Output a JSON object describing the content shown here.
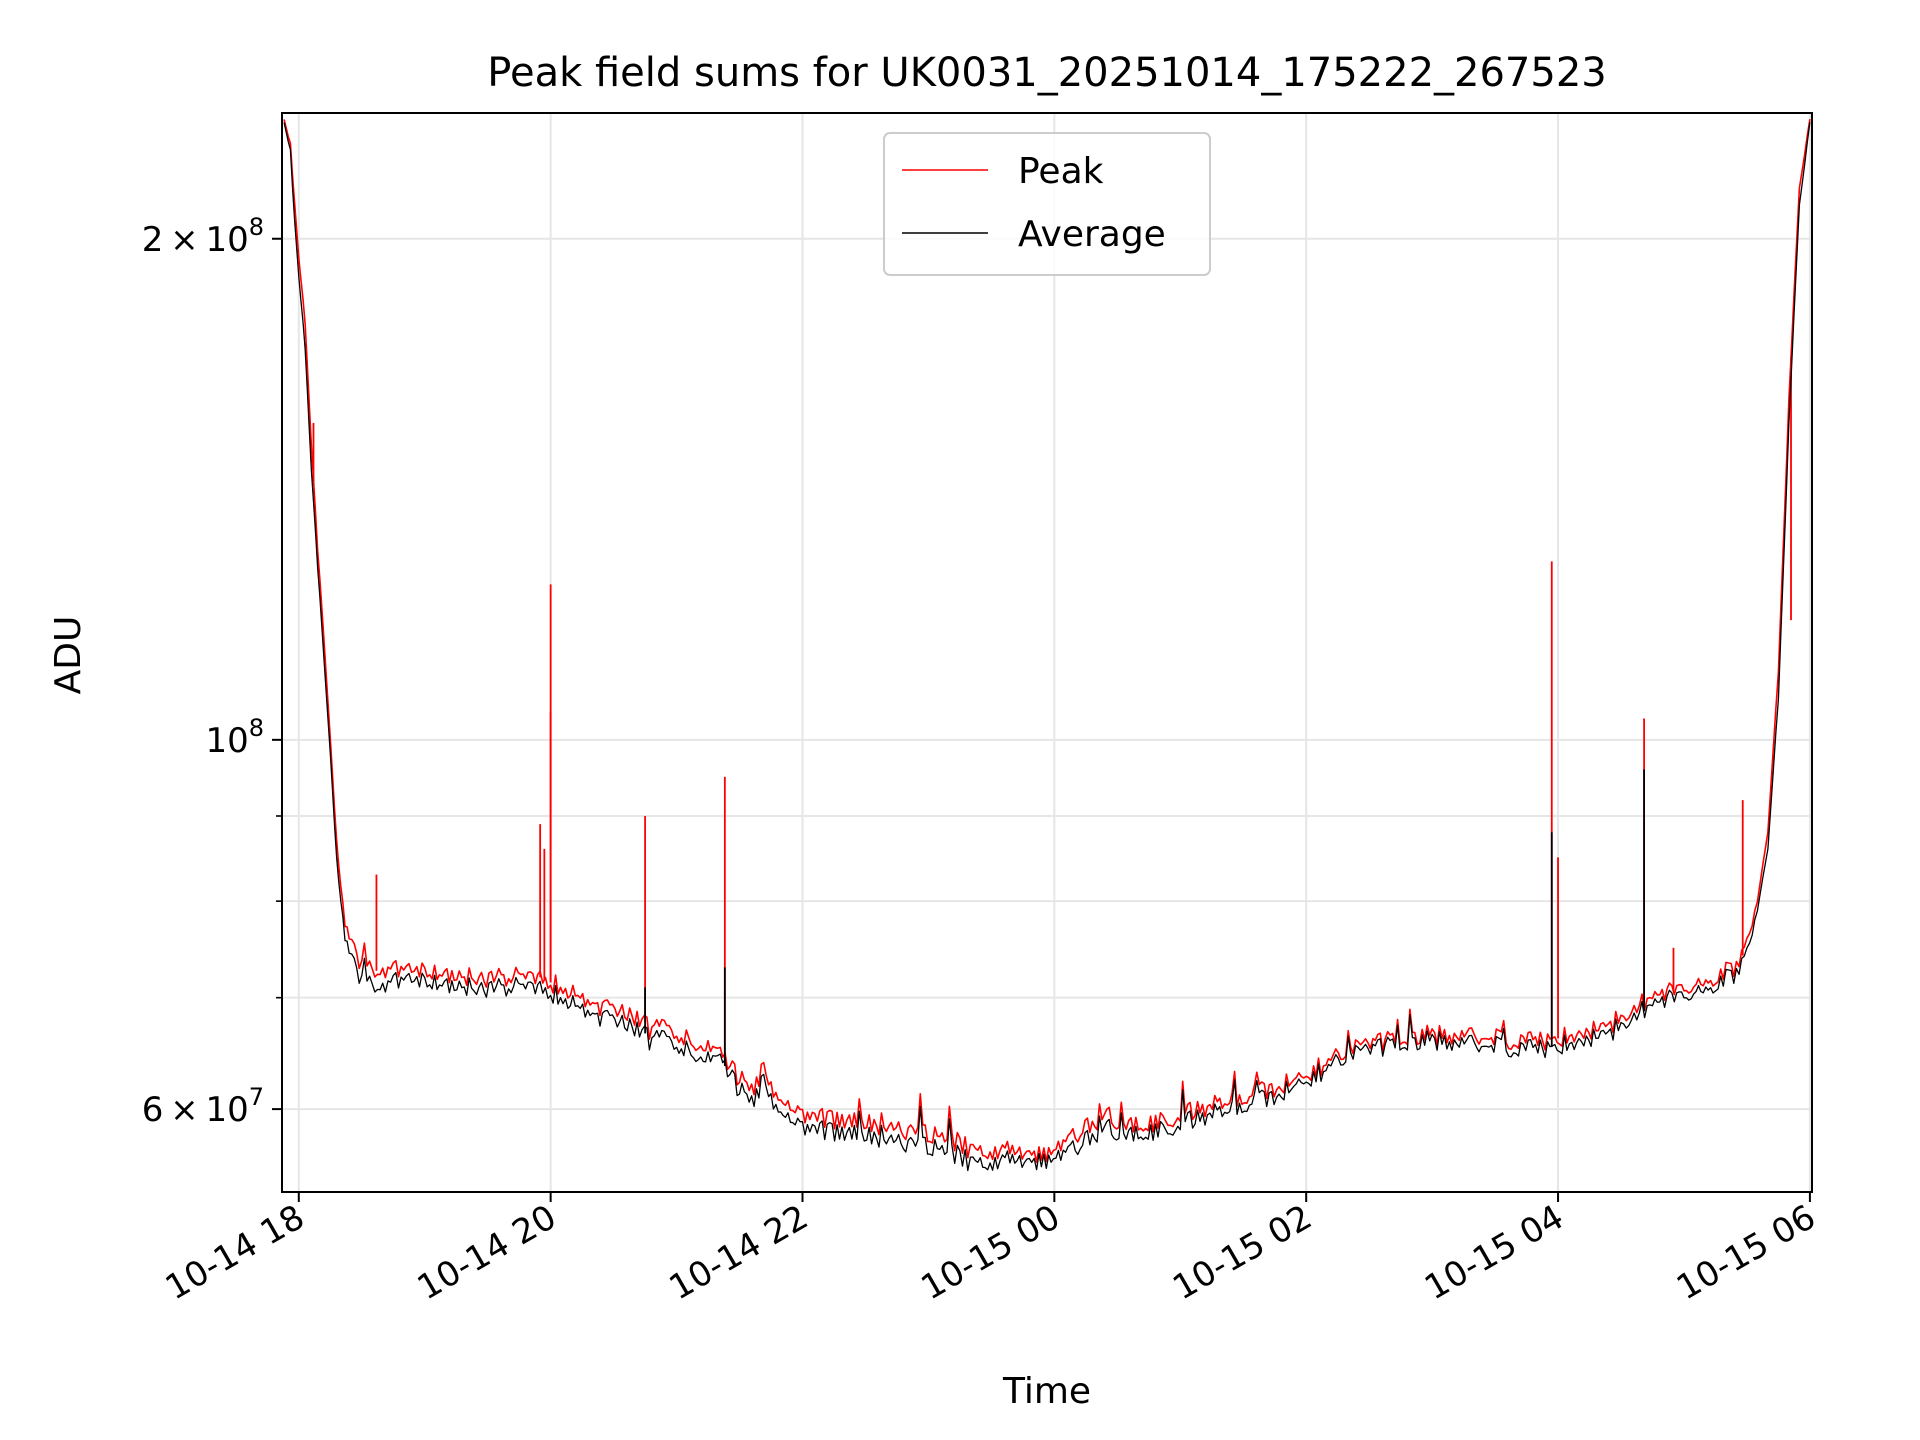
{
  "chart_data": {
    "type": "line",
    "title": "Peak field sums for UK0031_20251014_175222_267523",
    "xlabel": "Time",
    "ylabel": "ADU",
    "y_scale": "log",
    "ylim": [
      53500000,
      238000000
    ],
    "xlim": [
      "2025-10-14 17:52",
      "2025-10-15 06:01"
    ],
    "grid": true,
    "legend_position": "top-center",
    "x_ticks": [
      {
        "t": "2025-10-14 18:00",
        "label": "10-14 18"
      },
      {
        "t": "2025-10-14 20:00",
        "label": "10-14 20"
      },
      {
        "t": "2025-10-14 22:00",
        "label": "10-14 22"
      },
      {
        "t": "2025-10-15 00:00",
        "label": "10-15 00"
      },
      {
        "t": "2025-10-15 02:00",
        "label": "10-15 02"
      },
      {
        "t": "2025-10-15 04:00",
        "label": "10-15 04"
      },
      {
        "t": "2025-10-15 06:00",
        "label": "10-15 06"
      }
    ],
    "y_major_ticks": [
      {
        "v": 60000000,
        "mantissa": "6",
        "exponent": "7"
      },
      {
        "v": 100000000,
        "mantissa": "",
        "exponent": "8"
      },
      {
        "v": 200000000,
        "mantissa": "2",
        "exponent": "8"
      }
    ],
    "y_minor_ticks": [
      70000000,
      80000000,
      90000000
    ],
    "series": [
      {
        "name": "Peak",
        "color": "#ff0000",
        "x": [
          "2025-10-14 17:53",
          "2025-10-14 17:56",
          "2025-10-14 17:58",
          "2025-10-14 18:00",
          "2025-10-14 18:03",
          "2025-10-14 18:06",
          "2025-10-14 18:09",
          "2025-10-14 18:12",
          "2025-10-14 18:15",
          "2025-10-14 18:18",
          "2025-10-14 18:21",
          "2025-10-14 18:24",
          "2025-10-14 18:30",
          "2025-10-14 18:40",
          "2025-10-14 18:50",
          "2025-10-14 19:00",
          "2025-10-14 19:20",
          "2025-10-14 19:40",
          "2025-10-14 19:55",
          "2025-10-14 20:00",
          "2025-10-14 20:20",
          "2025-10-14 20:40",
          "2025-10-14 21:00",
          "2025-10-14 21:15",
          "2025-10-14 21:22",
          "2025-10-14 21:30",
          "2025-10-14 21:45",
          "2025-10-14 22:00",
          "2025-10-14 22:20",
          "2025-10-14 22:40",
          "2025-10-14 22:55",
          "2025-10-14 23:10",
          "2025-10-14 23:20",
          "2025-10-14 23:40",
          "2025-10-14 23:55",
          "2025-10-15 00:10",
          "2025-10-15 00:25",
          "2025-10-15 00:40",
          "2025-10-15 01:00",
          "2025-10-15 01:20",
          "2025-10-15 01:40",
          "2025-10-15 02:00",
          "2025-10-15 02:20",
          "2025-10-15 02:40",
          "2025-10-15 03:00",
          "2025-10-15 03:20",
          "2025-10-15 03:40",
          "2025-10-15 03:55",
          "2025-10-15 04:10",
          "2025-10-15 04:25",
          "2025-10-15 04:35",
          "2025-10-15 04:45",
          "2025-10-15 05:00",
          "2025-10-15 05:15",
          "2025-10-15 05:25",
          "2025-10-15 05:30",
          "2025-10-15 05:35",
          "2025-10-15 05:40",
          "2025-10-15 05:45",
          "2025-10-15 05:50",
          "2025-10-15 05:55",
          "2025-10-15 06:00"
        ],
        "y": [
          236000000,
          228000000,
          210000000,
          195000000,
          178000000,
          150000000,
          130000000,
          115000000,
          100000000,
          87000000,
          79000000,
          76000000,
          73000000,
          72500000,
          73000000,
          72500000,
          72000000,
          72000000,
          72000000,
          71500000,
          69500000,
          68000000,
          66500000,
          65500000,
          64500000,
          62500000,
          61500000,
          59500000,
          59000000,
          58500000,
          58200000,
          57500000,
          57000000,
          56500000,
          56300000,
          58000000,
          59500000,
          58500000,
          59500000,
          60500000,
          61500000,
          63000000,
          65000000,
          66000000,
          66500000,
          66500000,
          66000000,
          66000000,
          66500000,
          67500000,
          68500000,
          70000000,
          71000000,
          72000000,
          73000000,
          75000000,
          80000000,
          88000000,
          110000000,
          160000000,
          215000000,
          236000000
        ],
        "spikes": [
          {
            "t": "2025-10-14 18:07",
            "v": 155000000
          },
          {
            "t": "2025-10-14 18:37",
            "v": 83000000
          },
          {
            "t": "2025-10-14 19:55",
            "v": 89000000
          },
          {
            "t": "2025-10-14 19:57",
            "v": 86000000
          },
          {
            "t": "2025-10-14 20:00",
            "v": 124000000
          },
          {
            "t": "2025-10-14 20:00",
            "v": 104000000
          },
          {
            "t": "2025-10-14 20:45",
            "v": 90000000
          },
          {
            "t": "2025-10-14 21:23",
            "v": 95000000
          },
          {
            "t": "2025-10-15 03:57",
            "v": 128000000
          },
          {
            "t": "2025-10-15 04:00",
            "v": 85000000
          },
          {
            "t": "2025-10-15 04:41",
            "v": 103000000
          },
          {
            "t": "2025-10-15 04:55",
            "v": 75000000
          },
          {
            "t": "2025-10-15 05:28",
            "v": 92000000
          },
          {
            "t": "2025-10-15 05:51",
            "v": 118000000
          }
        ]
      },
      {
        "name": "Average",
        "color": "#000000",
        "x": [
          "2025-10-14 17:53",
          "2025-10-14 17:56",
          "2025-10-14 17:58",
          "2025-10-14 18:00",
          "2025-10-14 18:03",
          "2025-10-14 18:06",
          "2025-10-14 18:09",
          "2025-10-14 18:12",
          "2025-10-14 18:15",
          "2025-10-14 18:18",
          "2025-10-14 18:21",
          "2025-10-14 18:24",
          "2025-10-14 18:30",
          "2025-10-14 18:40",
          "2025-10-14 18:50",
          "2025-10-14 19:00",
          "2025-10-14 19:20",
          "2025-10-14 19:40",
          "2025-10-14 19:55",
          "2025-10-14 20:00",
          "2025-10-14 20:20",
          "2025-10-14 20:40",
          "2025-10-14 21:00",
          "2025-10-14 21:15",
          "2025-10-14 21:22",
          "2025-10-14 21:30",
          "2025-10-14 21:45",
          "2025-10-14 22:00",
          "2025-10-14 22:20",
          "2025-10-14 22:40",
          "2025-10-14 22:55",
          "2025-10-14 23:10",
          "2025-10-14 23:20",
          "2025-10-14 23:40",
          "2025-10-14 23:55",
          "2025-10-15 00:10",
          "2025-10-15 00:25",
          "2025-10-15 00:40",
          "2025-10-15 01:00",
          "2025-10-15 01:20",
          "2025-10-15 01:40",
          "2025-10-15 02:00",
          "2025-10-15 02:20",
          "2025-10-15 02:40",
          "2025-10-15 03:00",
          "2025-10-15 03:20",
          "2025-10-15 03:40",
          "2025-10-15 03:55",
          "2025-10-15 04:10",
          "2025-10-15 04:25",
          "2025-10-15 04:35",
          "2025-10-15 04:45",
          "2025-10-15 05:00",
          "2025-10-15 05:15",
          "2025-10-15 05:25",
          "2025-10-15 05:30",
          "2025-10-15 05:35",
          "2025-10-15 05:40",
          "2025-10-15 05:45",
          "2025-10-15 05:50",
          "2025-10-15 05:55",
          "2025-10-15 06:00"
        ],
        "y": [
          235000000,
          226000000,
          205000000,
          190000000,
          172000000,
          145000000,
          127000000,
          112000000,
          98000000,
          85000000,
          77500000,
          74500000,
          71500000,
          71000000,
          72000000,
          71500000,
          71000000,
          71000000,
          71000000,
          70500000,
          68500000,
          67000000,
          65500000,
          64500000,
          64000000,
          61500000,
          60500000,
          58500000,
          58000000,
          57500000,
          57200000,
          56500000,
          56000000,
          55800000,
          55800000,
          57000000,
          58500000,
          57800000,
          58800000,
          59800000,
          60800000,
          62500000,
          64500000,
          65500000,
          66000000,
          65800000,
          65300000,
          65300000,
          65800000,
          66800000,
          67800000,
          69300000,
          70300000,
          71300000,
          72300000,
          74000000,
          79000000,
          86000000,
          106000000,
          155000000,
          210000000,
          235000000
        ],
        "spikes": [
          {
            "t": "2025-10-14 20:45",
            "v": 71000000
          },
          {
            "t": "2025-10-14 21:23",
            "v": 73000000
          },
          {
            "t": "2025-10-15 03:57",
            "v": 88000000
          },
          {
            "t": "2025-10-15 04:41",
            "v": 96000000
          }
        ]
      }
    ]
  }
}
